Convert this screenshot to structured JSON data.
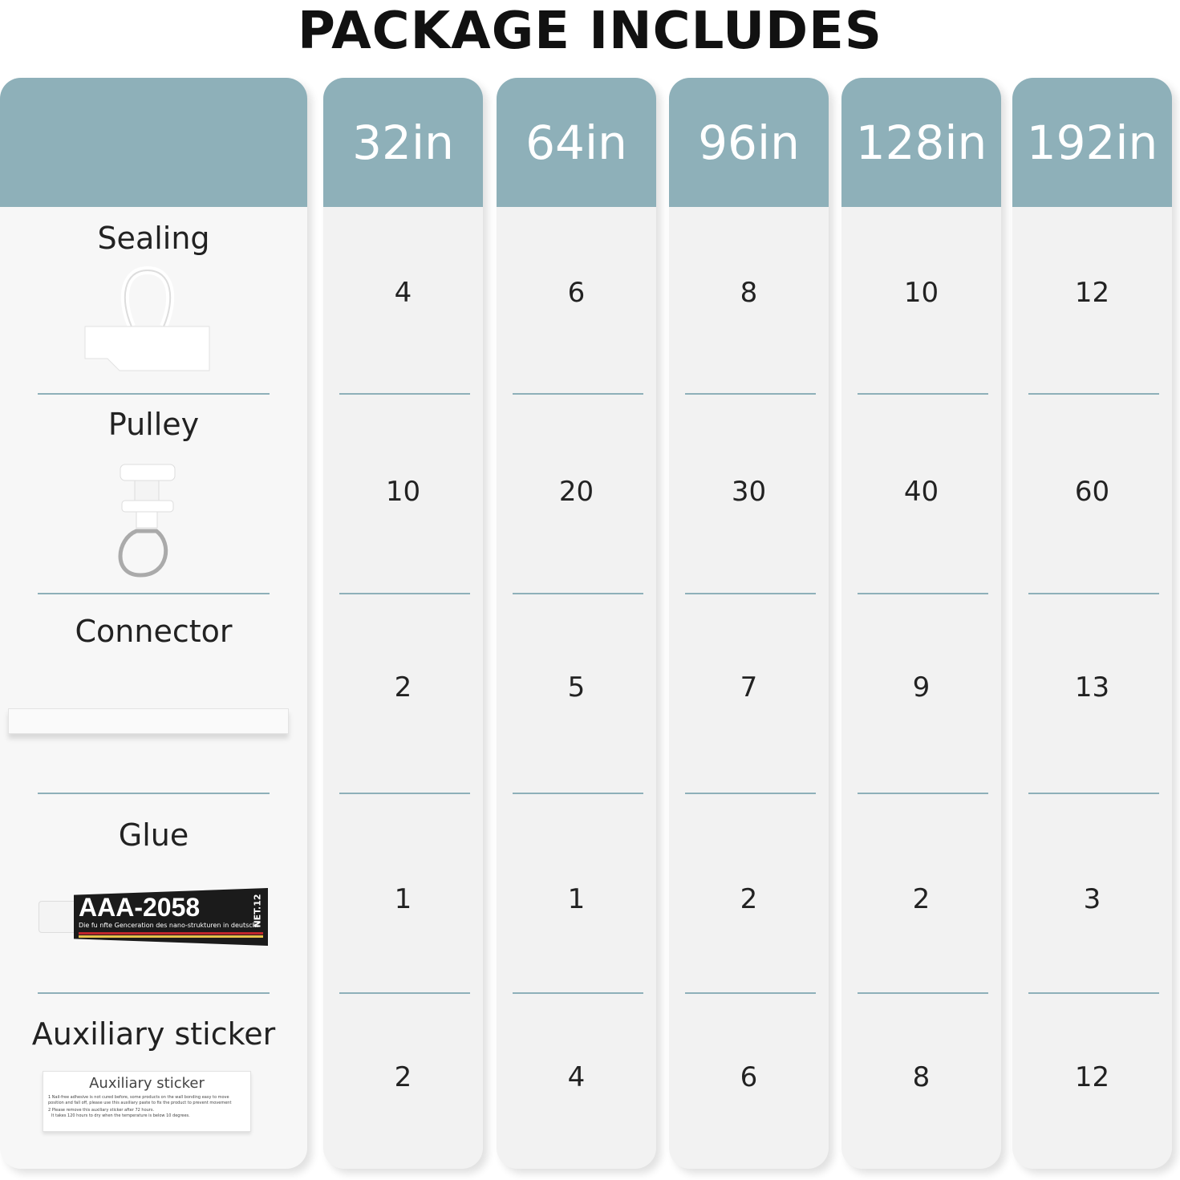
{
  "title": "PACKAGE INCLUDES",
  "sizes": [
    "32in",
    "64in",
    "96in",
    "128in",
    "192in"
  ],
  "rows": [
    {
      "label": "Sealing",
      "icon": "sealing-clip-icon",
      "values": [
        "4",
        "6",
        "8",
        "10",
        "12"
      ]
    },
    {
      "label": "Pulley",
      "icon": "pulley-hook-icon",
      "values": [
        "10",
        "20",
        "30",
        "40",
        "60"
      ]
    },
    {
      "label": "Connector",
      "icon": "connector-bar-icon",
      "values": [
        "2",
        "5",
        "7",
        "9",
        "13"
      ]
    },
    {
      "label": "Glue",
      "icon": "glue-tube-icon",
      "values": [
        "1",
        "1",
        "2",
        "2",
        "3"
      ]
    },
    {
      "label": "Auxiliary sticker",
      "icon": "sticker-icon",
      "values": [
        "2",
        "4",
        "6",
        "8",
        "12"
      ]
    }
  ],
  "glue": {
    "brand": "AAA-2058",
    "subtitle": "Die fu nfte Genceration des nano-strukturen in deutschland",
    "net": "NET.12"
  },
  "sticker": {
    "title": "Auxiliary sticker",
    "line1": "1 Nail-free adhesive is not cured before, some products on the wall bonding easy to move position and fall off, please use this auxiliary paste to fix the product to prevent movement",
    "line2": "2 Please remove this auxiliary sticker after 72 hours.",
    "line3": "It takes 120 hours to dry when the temperature is below 10 degrees."
  },
  "colors": {
    "header": "#8eb0b9",
    "cell": "#f2f2f2"
  }
}
